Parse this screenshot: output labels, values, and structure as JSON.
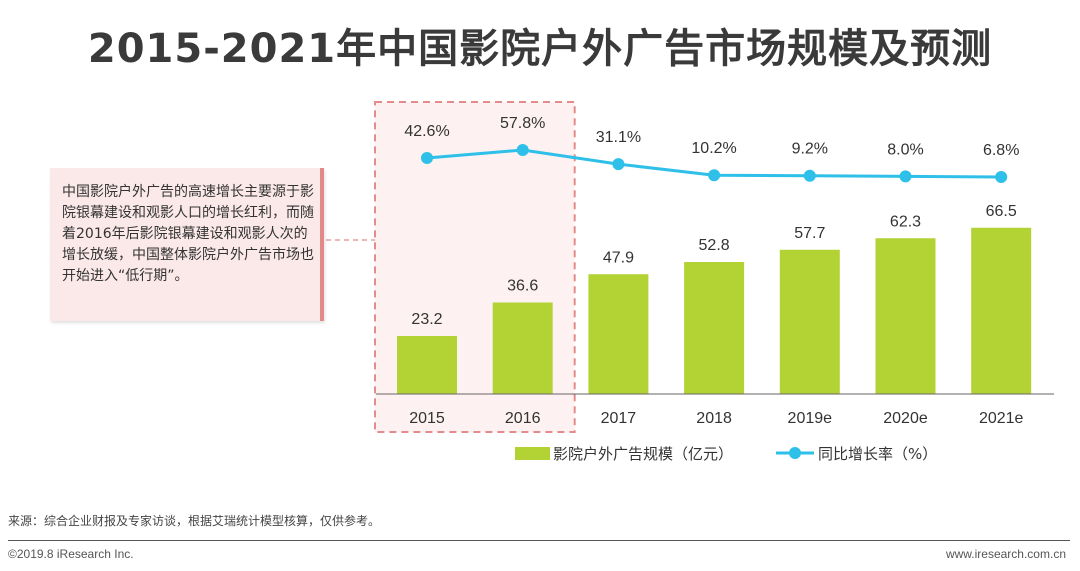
{
  "title": "2015-2021年中国影院户外广告市场规模及预测",
  "callout": "中国影院户外广告的高速增长主要源于影院银幕建设和观影人口的增长红利，而随着2016年后影院银幕建设和观影人次的增长放缓，中国整体影院户外广告市场也开始进入“低行期”。",
  "source": "来源：综合企业财报及专家访谈，根据艾瑞统计模型核算，仅供参考。",
  "copyright": "©2019.8 iResearch Inc.",
  "website": "www.iresearch.com.cn",
  "colors": {
    "bar": "#b3d335",
    "line": "#2ec0e8",
    "highlight_border": "#e58b8b",
    "highlight_fill": "#fdf1f1"
  },
  "chart_data": {
    "type": "bar+line",
    "categories": [
      "2015",
      "2016",
      "2017",
      "2018",
      "2019e",
      "2020e",
      "2021e"
    ],
    "series": [
      {
        "name": "影院户外广告规模（亿元）",
        "type": "bar",
        "values": [
          23.2,
          36.6,
          47.9,
          52.8,
          57.7,
          62.3,
          66.5
        ],
        "labels": [
          "23.2",
          "36.6",
          "47.9",
          "52.8",
          "57.7",
          "62.3",
          "66.5"
        ]
      },
      {
        "name": "同比增长率（%）",
        "type": "line",
        "values": [
          42.6,
          57.8,
          31.1,
          10.2,
          9.2,
          8.0,
          6.8
        ],
        "labels": [
          "42.6%",
          "57.8%",
          "31.1%",
          "10.2%",
          "9.2%",
          "8.0%",
          "6.8%"
        ]
      }
    ],
    "highlighted_categories": [
      "2015",
      "2016"
    ],
    "legend": "bottom"
  }
}
